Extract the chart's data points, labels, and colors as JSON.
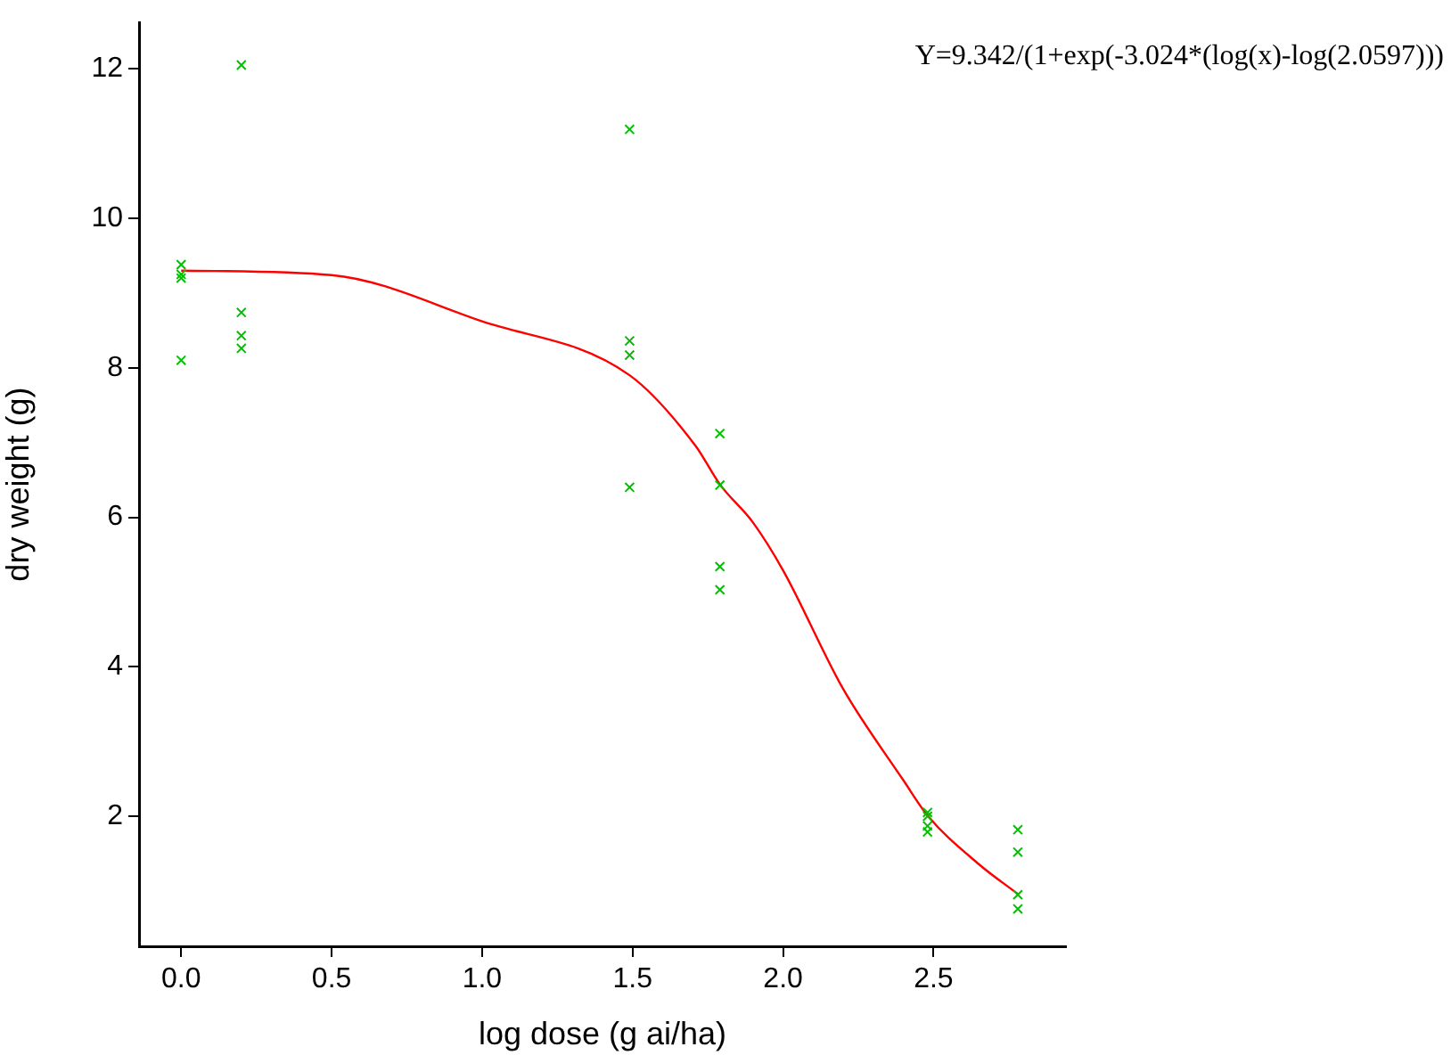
{
  "chart_data": {
    "type": "scatter",
    "xlabel": "log dose (g ai/ha)",
    "ylabel": "dry weight (g)",
    "annotations": [
      "Y=9.342/(1+exp(-3.024*(log(x)-log(2.0597)))"
    ],
    "xlim": [
      -0.14,
      2.94
    ],
    "ylim": [
      0.26,
      12.62
    ],
    "xticks": [
      {
        "value": 0,
        "label": "0.0"
      },
      {
        "value": 0.5,
        "label": "0.5"
      },
      {
        "value": 1,
        "label": "1.0"
      },
      {
        "value": 1.5,
        "label": "1.5"
      },
      {
        "value": 2,
        "label": "2.0"
      },
      {
        "value": 2.5,
        "label": "2.5"
      }
    ],
    "yticks": [
      2,
      4,
      6,
      8,
      10,
      12
    ],
    "grid": false,
    "legend": false,
    "series": [
      {
        "color": "#00c000",
        "marker": "cross",
        "x": [
          0,
          0,
          0,
          0,
          0.2,
          0.2,
          0.2,
          0.2,
          1.49,
          1.49,
          1.49,
          1.49,
          1.79,
          1.79,
          1.79,
          1.79,
          2.48,
          2.48,
          2.48,
          2.48,
          2.78,
          2.78,
          2.78,
          2.78
        ],
        "values": [
          9.38,
          9.25,
          9.2,
          8.1,
          12.05,
          8.74,
          8.43,
          8.26,
          11.19,
          8.36,
          8.17,
          6.4,
          7.12,
          6.43,
          5.34,
          5.03,
          2.05,
          2,
          1.87,
          1.79,
          1.82,
          1.52,
          0.95,
          0.76
        ]
      },
      {
        "type": "line",
        "color": "#ff0000",
        "marker": "none",
        "line_style": "solid",
        "x": [
          0,
          0.5,
          1,
          1.49,
          1.71,
          1.79,
          1.9,
          2,
          2.2,
          2.4,
          2.48,
          2.65,
          2.78
        ],
        "values": [
          9.3,
          9.24,
          8.62,
          7.9,
          6.95,
          6.44,
          5.93,
          5.29,
          3.7,
          2.48,
          2.01,
          1.36,
          0.96
        ]
      }
    ]
  }
}
